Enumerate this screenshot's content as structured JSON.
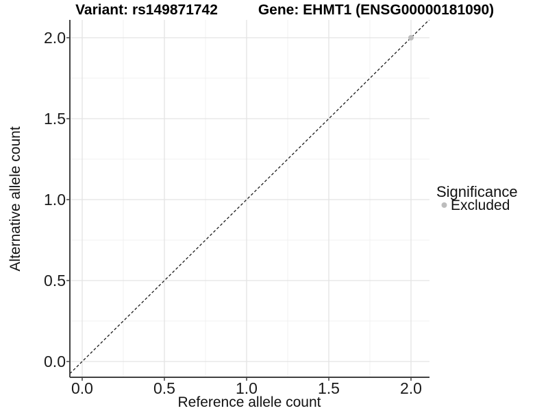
{
  "titles": {
    "variant": "Variant: rs149871742",
    "gene": "Gene: EHMT1 (ENSG00000181090)"
  },
  "axes": {
    "x": {
      "label": "Reference allele count",
      "tick_labels": [
        "0.0",
        "0.5",
        "1.0",
        "1.5",
        "2.0"
      ]
    },
    "y": {
      "label": "Alternative allele count",
      "tick_labels": [
        "0.0",
        "0.5",
        "1.0",
        "1.5",
        "2.0"
      ]
    }
  },
  "legend": {
    "title": "Significance",
    "items": [
      {
        "label": "Excluded",
        "color": "#bdbdbd"
      }
    ]
  },
  "chart_data": {
    "type": "scatter",
    "title_left": "Variant: rs149871742",
    "title_right": "Gene: EHMT1 (ENSG00000181090)",
    "xlabel": "Reference allele count",
    "ylabel": "Alternative allele count",
    "xlim": [
      -0.09,
      2.11
    ],
    "ylim": [
      -0.1,
      2.11
    ],
    "x_ticks": [
      0.0,
      0.5,
      1.0,
      1.5,
      2.0
    ],
    "y_ticks": [
      0.0,
      0.5,
      1.0,
      1.5,
      2.0
    ],
    "x_minor_ticks": [
      0.25,
      0.75,
      1.25,
      1.75
    ],
    "y_minor_ticks": [
      0.25,
      0.75,
      1.25,
      1.75
    ],
    "series": [
      {
        "name": "Excluded",
        "color": "#bdbdbd",
        "point_radius": 4,
        "points": [
          [
            2.0,
            2.0
          ]
        ]
      }
    ],
    "reference_line": {
      "style": "dashed",
      "slope": 1,
      "intercept": 0,
      "color": "#1a1a1a"
    },
    "legend": {
      "title": "Significance",
      "position": "right",
      "entries": [
        "Excluded"
      ]
    },
    "grid": "major+minor",
    "colors": {
      "grid_major": "#e3e3e3",
      "grid_minor": "#f0f0f0",
      "axis_line": "#404040",
      "tick_mark": "#404040",
      "point": "#bdbdbd",
      "background": "#ffffff"
    }
  }
}
